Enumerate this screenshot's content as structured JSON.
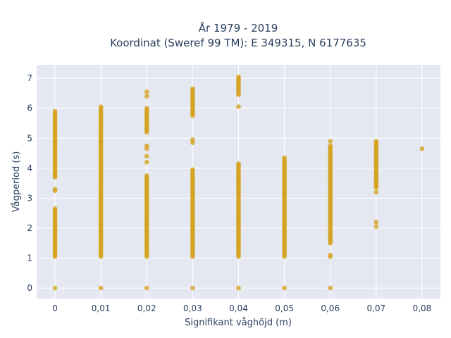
{
  "chart_data": {
    "type": "scatter",
    "title_line1": "År 1979 - 2019",
    "title_line2": "Koordinat (Sweref 99 TM): E 349315, N 6177635",
    "xlabel": "Signifikant våghöjd (m)",
    "ylabel": "Vågperiod (s)",
    "xlim": [
      -0.004,
      0.084
    ],
    "ylim": [
      -0.35,
      7.45
    ],
    "x_ticks": [
      0,
      0.01,
      0.02,
      0.03,
      0.04,
      0.05,
      0.06,
      0.07,
      0.08
    ],
    "x_tick_labels": [
      "0",
      "0,01",
      "0,02",
      "0,03",
      "0,04",
      "0,05",
      "0,06",
      "0,07",
      "0,08"
    ],
    "y_ticks": [
      0,
      1,
      2,
      3,
      4,
      5,
      6,
      7
    ],
    "y_tick_labels": [
      "0",
      "1",
      "2",
      "3",
      "4",
      "5",
      "6",
      "7"
    ],
    "grid": true,
    "colors": {
      "marker": "#d4a21f",
      "plot_bg": "#e5e8f0",
      "grid": "#ffffff",
      "text": "#2a3f5f"
    },
    "columns": [
      {
        "x": 0.0,
        "segments": [
          [
            1.05,
            2.65
          ],
          [
            3.7,
            5.9
          ]
        ],
        "points": [
          0,
          3.3,
          3.25
        ]
      },
      {
        "x": 0.01,
        "segments": [
          [
            1.05,
            6.05
          ]
        ],
        "points": [
          0
        ]
      },
      {
        "x": 0.02,
        "segments": [
          [
            1.05,
            3.75
          ],
          [
            5.2,
            6.0
          ]
        ],
        "points": [
          0,
          4.2,
          4.4,
          4.65,
          4.75,
          6.4,
          6.55
        ]
      },
      {
        "x": 0.03,
        "segments": [
          [
            1.05,
            3.95
          ],
          [
            5.75,
            6.65
          ]
        ],
        "points": [
          0,
          4.85,
          4.95
        ]
      },
      {
        "x": 0.04,
        "segments": [
          [
            1.05,
            4.15
          ],
          [
            6.45,
            7.05
          ]
        ],
        "points": [
          0,
          6.05
        ]
      },
      {
        "x": 0.05,
        "segments": [
          [
            1.05,
            4.35
          ]
        ],
        "points": [
          0
        ]
      },
      {
        "x": 0.06,
        "segments": [
          [
            1.5,
            4.75
          ]
        ],
        "points": [
          0,
          1.05,
          1.1,
          4.9
        ]
      },
      {
        "x": 0.07,
        "segments": [
          [
            3.35,
            4.9
          ]
        ],
        "points": [
          2.05,
          2.2,
          3.2
        ]
      },
      {
        "x": 0.08,
        "segments": [],
        "points": [
          4.65
        ]
      }
    ]
  }
}
